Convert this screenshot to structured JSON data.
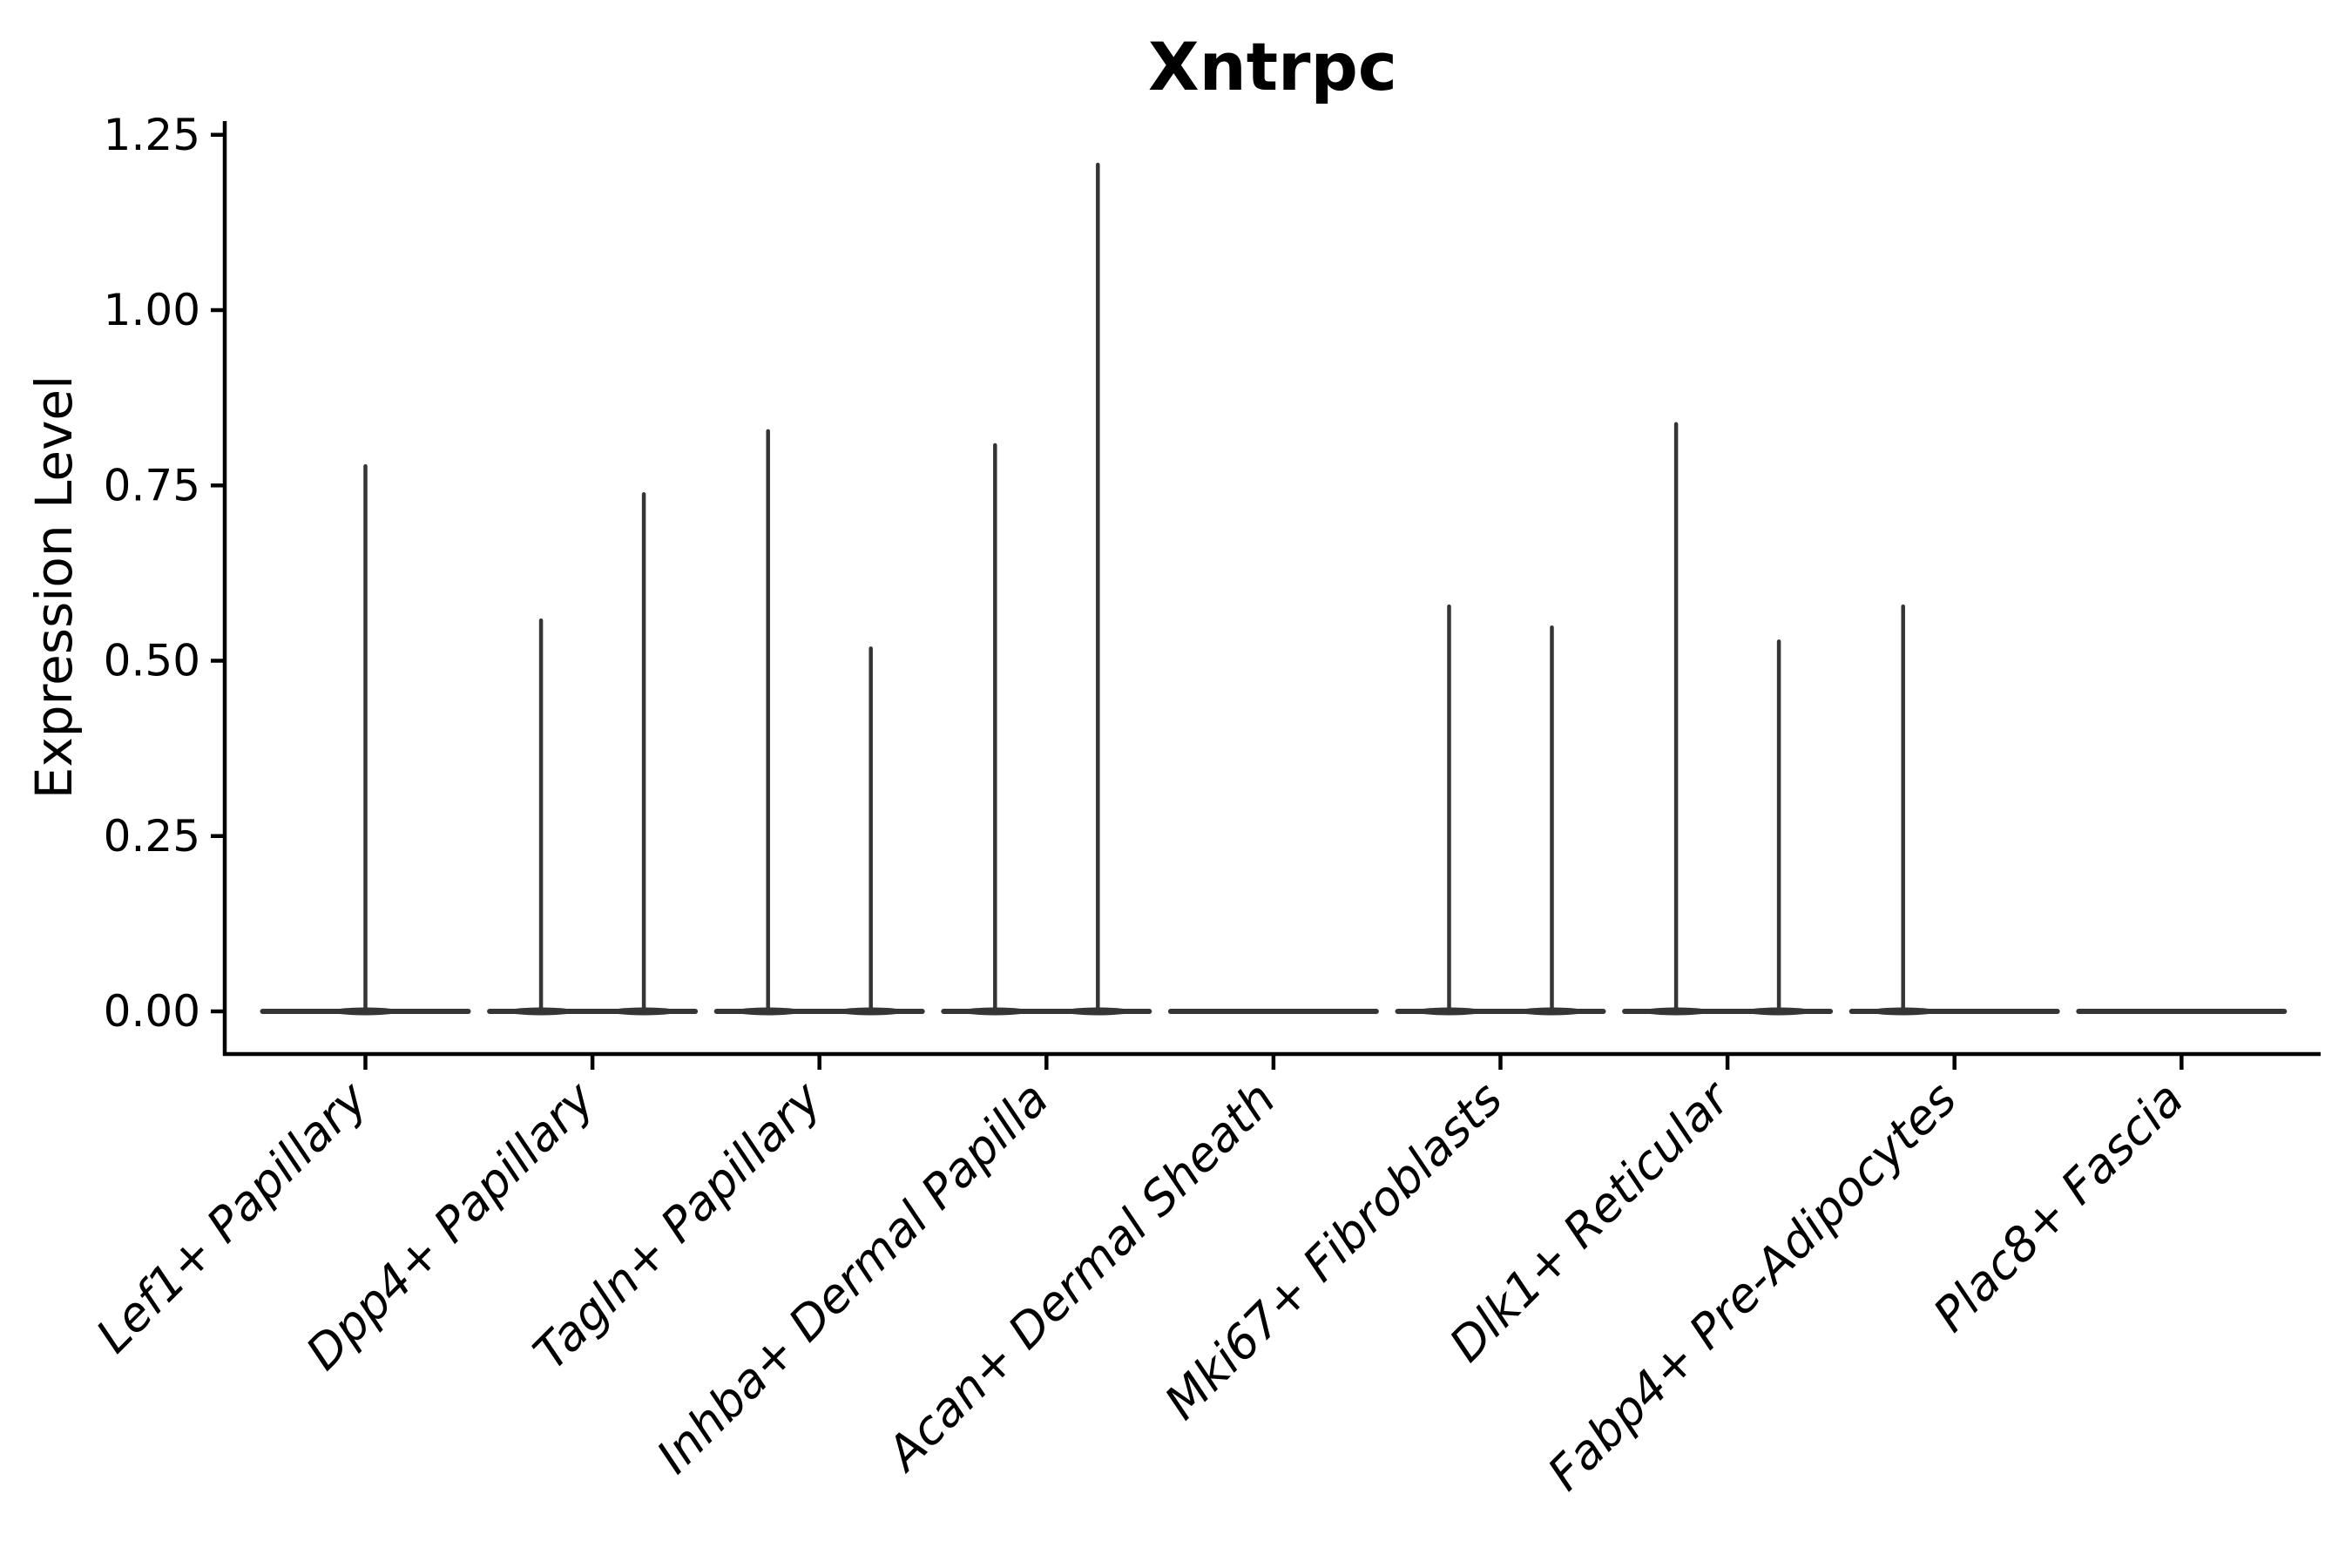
{
  "chart_data": {
    "type": "violin",
    "title": "Xntrpc",
    "ylabel": "Expression Level",
    "xlabel": "",
    "ylim": [
      -0.06,
      1.27
    ],
    "ytick_values": [
      0,
      0.25,
      0.5,
      0.75,
      1.0,
      1.25
    ],
    "ytick_labels": [
      "0.00",
      "0.25",
      "0.50",
      "0.75",
      "1.00",
      "1.25"
    ],
    "grid": false,
    "legend": "none",
    "background_color": "#ffffff",
    "violin_color": "#353535",
    "axis_color": "#000000",
    "baseline_value": 0,
    "categories": [
      {
        "label": "Lef1+ Papillary",
        "violins": [
          {
            "slot": "center",
            "max_expression": 0.78
          }
        ]
      },
      {
        "label": "Dpp4+ Papillary",
        "violins": [
          {
            "slot": "left",
            "max_expression": 0.56
          },
          {
            "slot": "right",
            "max_expression": 0.74
          }
        ]
      },
      {
        "label": "Tagln+ Papillary",
        "violins": [
          {
            "slot": "left",
            "max_expression": 0.83
          },
          {
            "slot": "right",
            "max_expression": 0.52
          }
        ]
      },
      {
        "label": "Inhba+ Dermal Papilla",
        "violins": [
          {
            "slot": "left",
            "max_expression": 0.81
          },
          {
            "slot": "right",
            "max_expression": 1.21
          }
        ]
      },
      {
        "label": "Acan+ Dermal Sheath",
        "violins": []
      },
      {
        "label": "Mki67+ Fibroblasts",
        "violins": [
          {
            "slot": "left",
            "max_expression": 0.58
          },
          {
            "slot": "right",
            "max_expression": 0.55
          }
        ]
      },
      {
        "label": "Dlk1+ Reticular",
        "violins": [
          {
            "slot": "left",
            "max_expression": 0.84
          },
          {
            "slot": "right",
            "max_expression": 0.53
          }
        ]
      },
      {
        "label": "Fabp4+ Pre-Adipocytes",
        "violins": [
          {
            "slot": "left",
            "max_expression": 0.58
          }
        ]
      },
      {
        "label": "Plac8+ Fascia",
        "violins": []
      }
    ]
  }
}
